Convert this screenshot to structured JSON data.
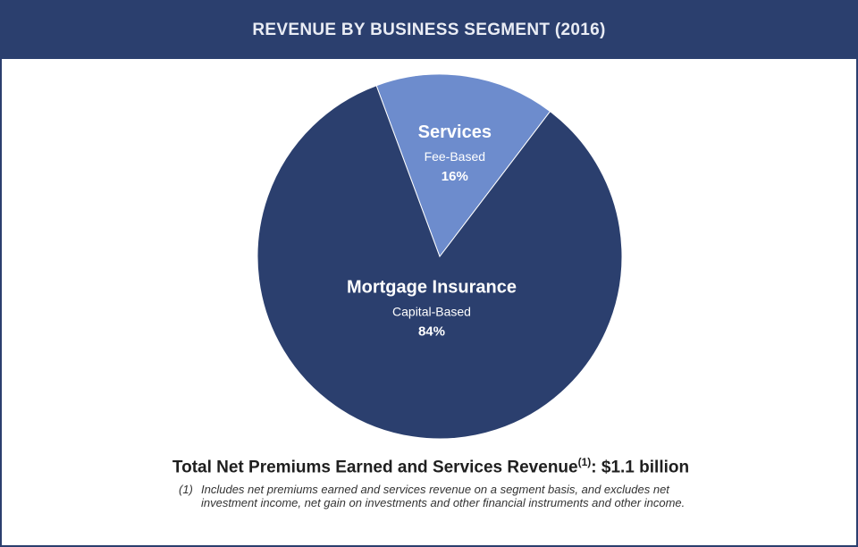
{
  "header": {
    "title": "REVENUE BY BUSINESS SEGMENT (2016)"
  },
  "chart_data": {
    "type": "pie",
    "title": "REVENUE BY BUSINESS SEGMENT (2016)",
    "slices": [
      {
        "name": "Services",
        "sub": "Fee-Based",
        "value": 16,
        "label": "16%",
        "color": "#6d8ccd"
      },
      {
        "name": "Mortgage Insurance",
        "sub": "Capital-Based",
        "value": 84,
        "label": "84%",
        "color": "#2b3f6e"
      }
    ]
  },
  "total": {
    "label": "Total Net Premiums Earned and Services Revenue",
    "note_ref": "(1)",
    "separator": ":",
    "value": "$1.1 billion"
  },
  "footnote": {
    "number": "(1)",
    "text": "Includes net premiums earned and services revenue on a segment basis, and excludes net investment income, net gain on investments and other financial instruments and other income."
  }
}
